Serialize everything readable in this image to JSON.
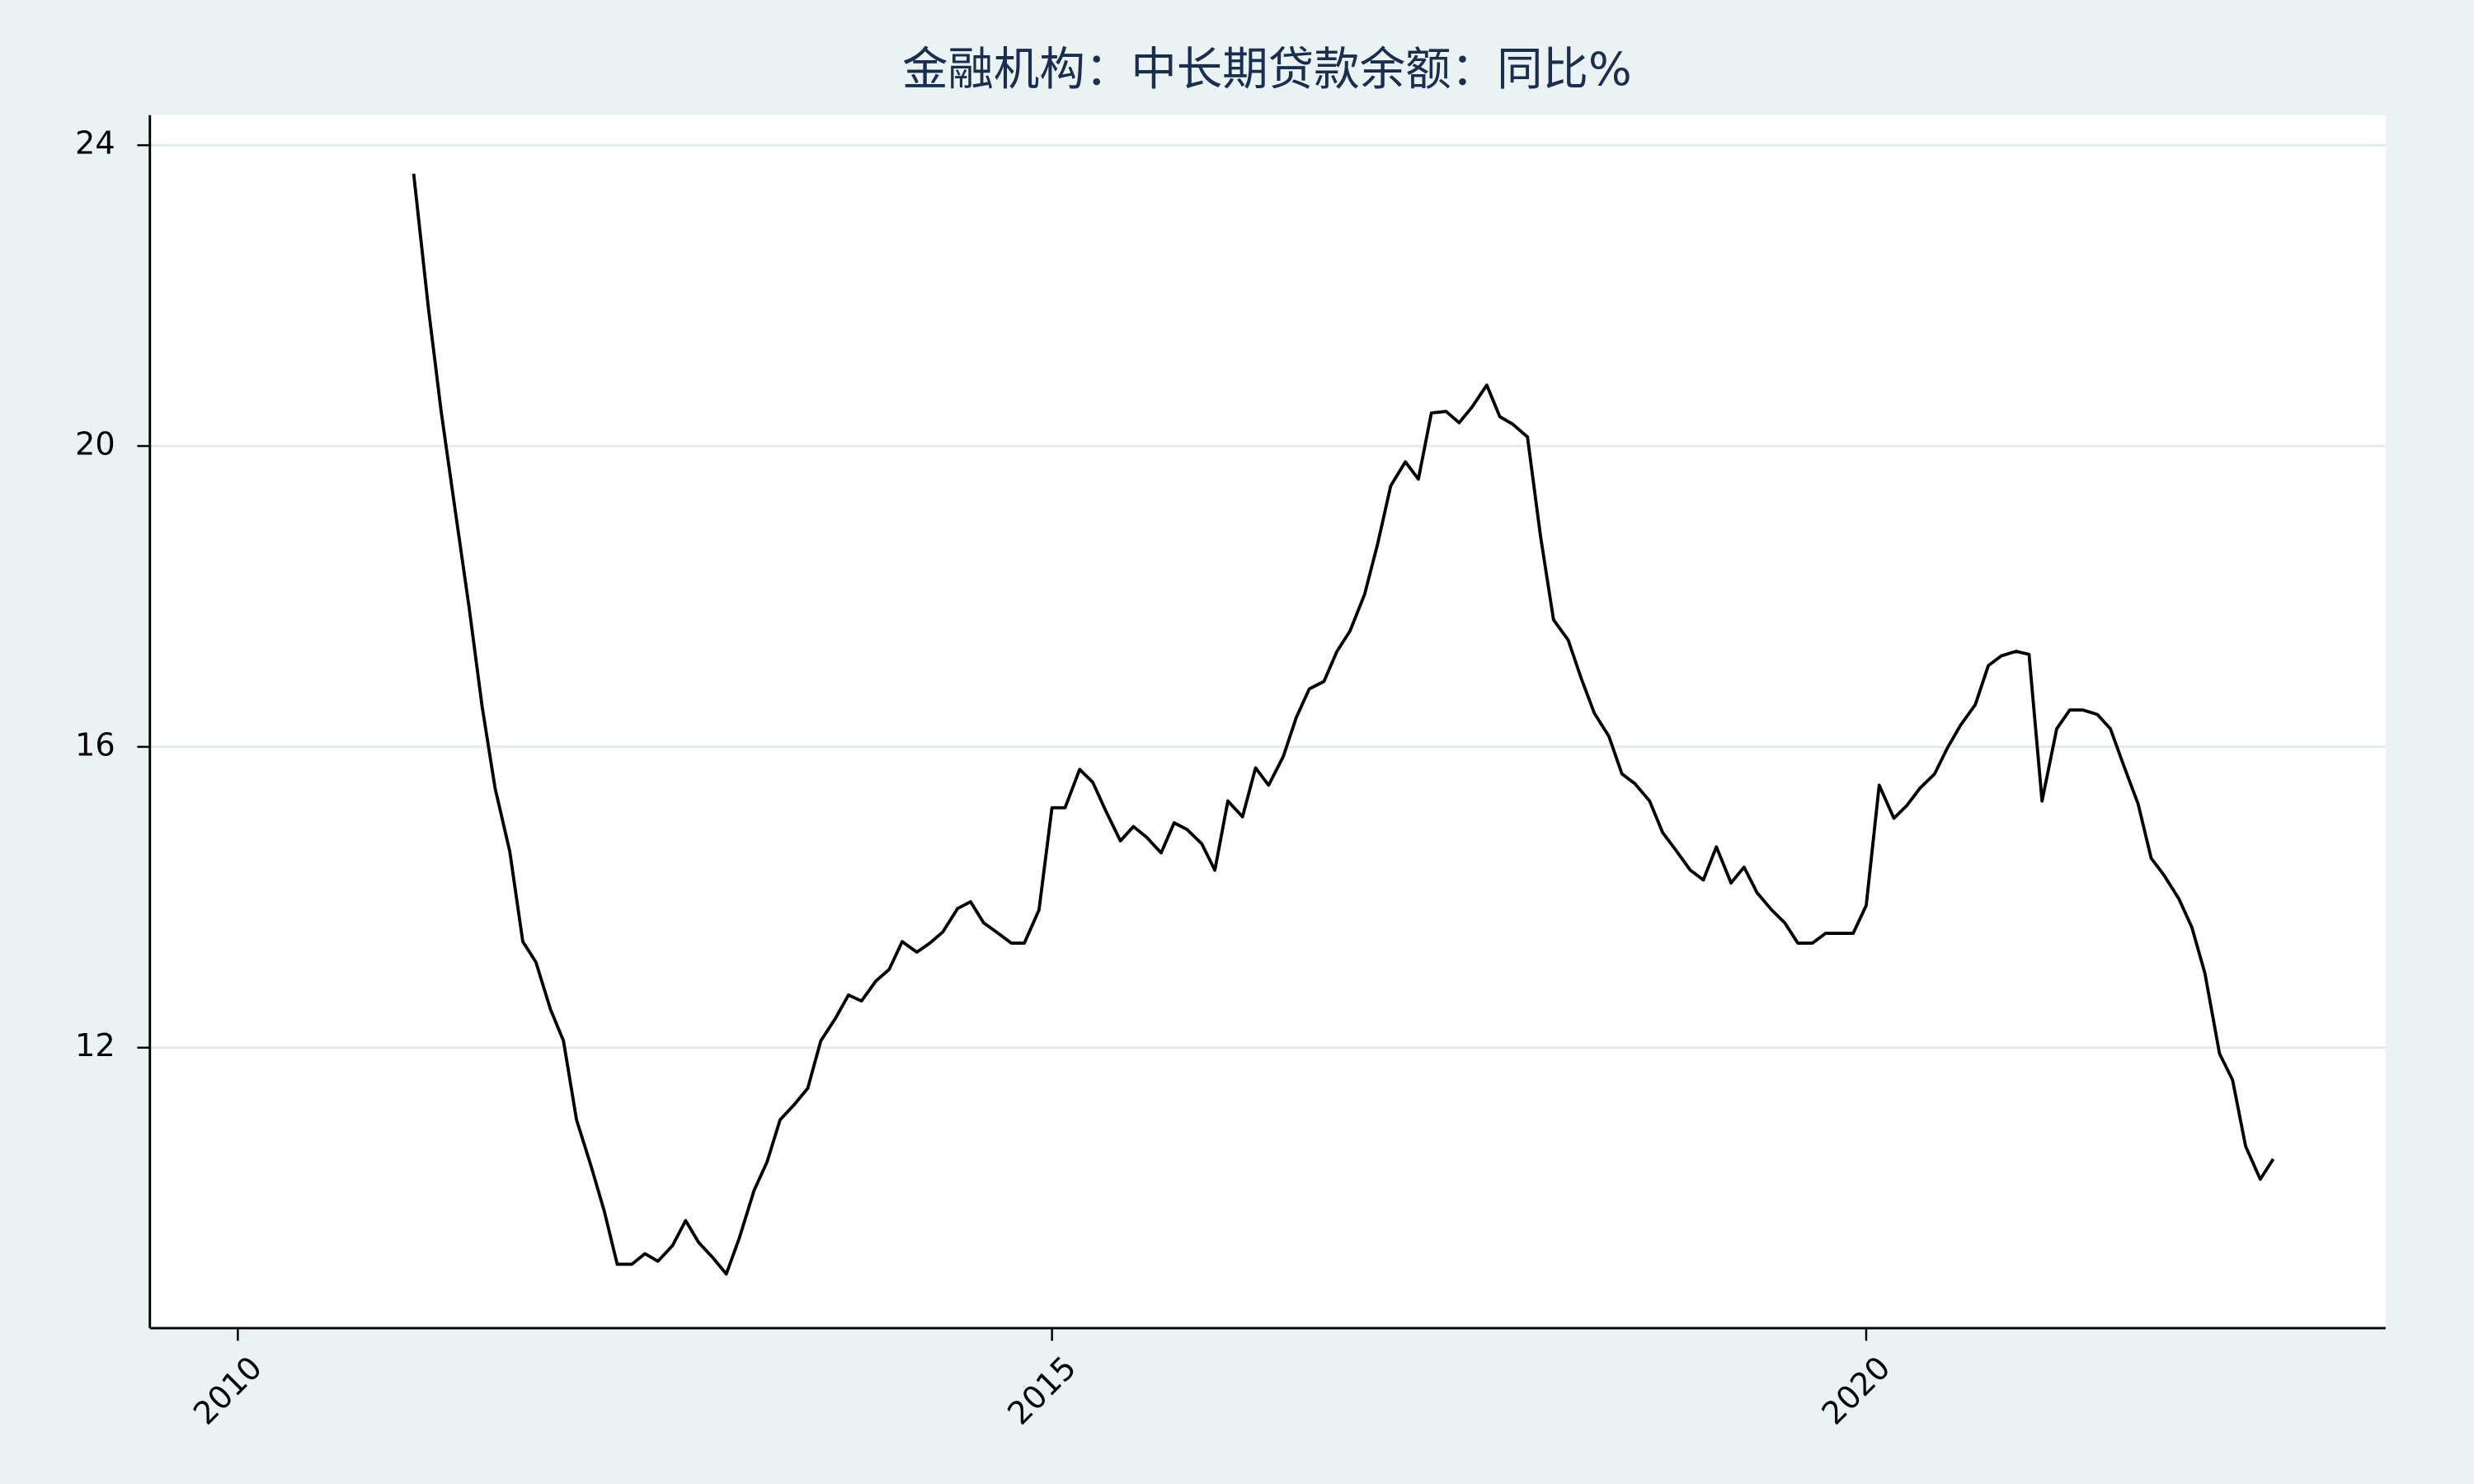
{
  "chart_data": {
    "type": "line",
    "title": "金融机构：中长期贷款余额：同比%",
    "color": "#000000",
    "xlim": [
      2009.46,
      2023.19
    ],
    "xticks": [
      2010,
      2015,
      2020
    ],
    "ylim": [
      8.27,
      24.4
    ],
    "yticks": [
      12,
      16,
      20,
      24
    ],
    "grid": true,
    "x": [
      2011.08,
      2011.17,
      2011.25,
      2011.33,
      2011.42,
      2011.5,
      2011.58,
      2011.67,
      2011.75,
      2011.83,
      2011.92,
      2012.0,
      2012.08,
      2012.17,
      2012.25,
      2012.33,
      2012.42,
      2012.5,
      2012.58,
      2012.67,
      2012.75,
      2012.83,
      2012.92,
      2013.0,
      2013.08,
      2013.17,
      2013.25,
      2013.33,
      2013.42,
      2013.5,
      2013.58,
      2013.67,
      2013.75,
      2013.83,
      2013.92,
      2014.0,
      2014.08,
      2014.17,
      2014.25,
      2014.33,
      2014.42,
      2014.5,
      2014.58,
      2014.67,
      2014.75,
      2014.83,
      2014.92,
      2015.0,
      2015.08,
      2015.17,
      2015.25,
      2015.33,
      2015.42,
      2015.5,
      2015.58,
      2015.67,
      2015.75,
      2015.83,
      2015.92,
      2016.0,
      2016.08,
      2016.17,
      2016.25,
      2016.33,
      2016.42,
      2016.5,
      2016.58,
      2016.67,
      2016.75,
      2016.83,
      2016.92,
      2017.0,
      2017.08,
      2017.17,
      2017.25,
      2017.33,
      2017.42,
      2017.5,
      2017.58,
      2017.67,
      2017.75,
      2017.83,
      2017.92,
      2018.0,
      2018.08,
      2018.17,
      2018.25,
      2018.33,
      2018.42,
      2018.5,
      2018.58,
      2018.67,
      2018.75,
      2018.83,
      2018.92,
      2019.0,
      2019.08,
      2019.17,
      2019.25,
      2019.33,
      2019.42,
      2019.5,
      2019.58,
      2019.67,
      2019.75,
      2019.83,
      2019.92,
      2020.0,
      2020.08,
      2020.17,
      2020.25,
      2020.33,
      2020.42,
      2020.5,
      2020.58,
      2020.67,
      2020.75,
      2020.83,
      2020.92,
      2021.0,
      2021.08,
      2021.17,
      2021.25,
      2021.33,
      2021.42,
      2021.5,
      2021.58,
      2021.67,
      2021.75,
      2021.83,
      2021.92,
      2022.0,
      2022.08,
      2022.17,
      2022.25,
      2022.33,
      2022.42,
      2022.5
    ],
    "values": [
      23.62,
      21.84,
      20.44,
      19.22,
      17.86,
      16.54,
      15.45,
      14.61,
      13.41,
      13.14,
      12.51,
      12.09,
      11.04,
      10.42,
      9.83,
      9.12,
      9.12,
      9.26,
      9.16,
      9.37,
      9.7,
      9.41,
      9.2,
      8.99,
      9.47,
      10.1,
      10.48,
      11.04,
      11.25,
      11.46,
      12.09,
      12.39,
      12.7,
      12.62,
      12.89,
      13.04,
      13.41,
      13.27,
      13.39,
      13.54,
      13.85,
      13.94,
      13.66,
      13.52,
      13.39,
      13.39,
      13.83,
      15.19,
      15.19,
      15.7,
      15.53,
      15.15,
      14.75,
      14.94,
      14.8,
      14.59,
      14.99,
      14.9,
      14.71,
      14.36,
      15.28,
      15.07,
      15.72,
      15.49,
      15.87,
      16.39,
      16.77,
      16.87,
      17.27,
      17.54,
      18.03,
      18.7,
      19.47,
      19.79,
      19.56,
      20.44,
      20.46,
      20.31,
      20.52,
      20.81,
      20.39,
      20.29,
      20.12,
      18.8,
      17.69,
      17.42,
      16.91,
      16.45,
      16.14,
      15.64,
      15.51,
      15.28,
      14.86,
      14.63,
      14.36,
      14.23,
      14.67,
      14.19,
      14.4,
      14.06,
      13.83,
      13.66,
      13.39,
      13.39,
      13.52,
      13.52,
      13.52,
      13.89,
      15.49,
      15.05,
      15.22,
      15.45,
      15.64,
      15.99,
      16.29,
      16.56,
      17.08,
      17.21,
      17.27,
      17.23,
      15.28,
      16.24,
      16.49,
      16.49,
      16.43,
      16.24,
      15.76,
      15.24,
      14.52,
      14.29,
      13.98,
      13.6,
      12.99,
      11.92,
      11.57,
      10.69,
      10.25,
      10.52
    ]
  }
}
